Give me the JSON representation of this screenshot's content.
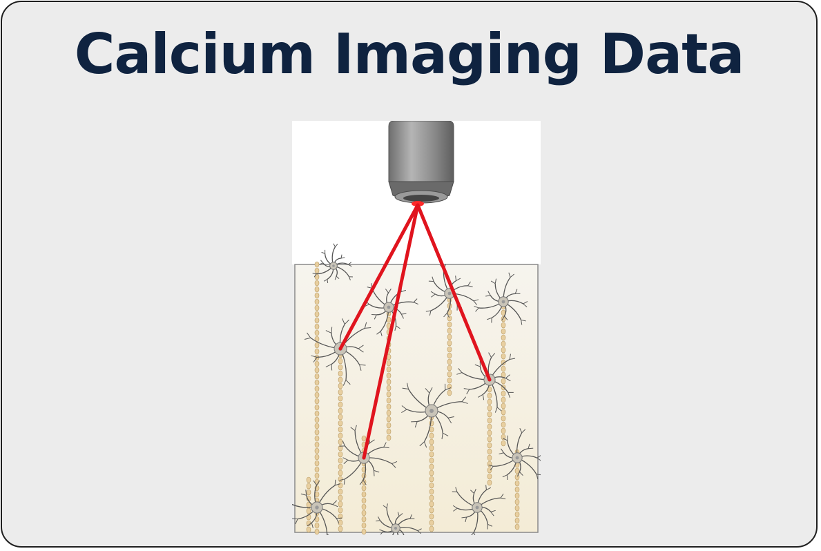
{
  "title": "Calcium Imaging Data",
  "colors": {
    "background": "#ececec",
    "border": "#1f1f1f",
    "title": "#0f2340",
    "laser": "#e0141e",
    "tissue": "#f7f2e4",
    "objective": "#8c8c8c",
    "axon": "#e8cfa0",
    "neuron": "#555555"
  },
  "icons": {
    "objective": "microscope-objective-icon",
    "neuron": "neuron-icon"
  }
}
